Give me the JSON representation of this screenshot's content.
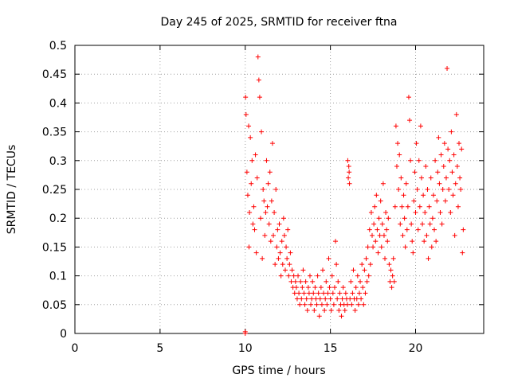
{
  "chart_data": {
    "type": "scatter",
    "title": "Day 245 of 2025, SRMTID for receiver ftna",
    "xlabel": "GPS time / hours",
    "ylabel": "SRMTID / TECUs",
    "xlim": [
      0,
      24
    ],
    "ylim": [
      0,
      0.5
    ],
    "xticks": [
      0,
      5,
      10,
      15,
      20
    ],
    "xtick_labels": [
      "0",
      "5",
      "10",
      "15",
      "20"
    ],
    "yticks": [
      0,
      0.05,
      0.1,
      0.15,
      0.2,
      0.25,
      0.3,
      0.35,
      0.4,
      0.45,
      0.5
    ],
    "ytick_labels": [
      "0",
      "0.05",
      "0.1",
      "0.15",
      "0.2",
      "0.25",
      "0.3",
      "0.35",
      "0.4",
      "0.45",
      "0.5"
    ],
    "grid": true,
    "marker": "plus",
    "color": "#ff0000",
    "series": [
      {
        "name": "SRMTID",
        "x": [
          10.0,
          10.0,
          10.02,
          10.05,
          10.1,
          10.15,
          10.2,
          10.22,
          10.25,
          10.3,
          10.35,
          10.4,
          10.45,
          10.5,
          10.55,
          10.6,
          10.65,
          10.7,
          10.75,
          10.8,
          10.85,
          10.9,
          10.95,
          11.0,
          11.05,
          11.1,
          11.15,
          11.2,
          11.25,
          11.3,
          11.35,
          11.4,
          11.45,
          11.5,
          11.55,
          11.6,
          11.65,
          11.7,
          11.75,
          11.8,
          11.85,
          11.9,
          11.95,
          12.0,
          12.05,
          12.1,
          12.15,
          12.2,
          12.25,
          12.3,
          12.35,
          12.4,
          12.45,
          12.5,
          12.55,
          12.6,
          12.65,
          12.7,
          12.75,
          12.8,
          12.85,
          12.9,
          12.95,
          13.0,
          13.05,
          13.1,
          13.15,
          13.2,
          13.25,
          13.3,
          13.35,
          13.4,
          13.45,
          13.5,
          13.55,
          13.6,
          13.65,
          13.7,
          13.75,
          13.8,
          13.85,
          13.9,
          13.95,
          14.0,
          14.05,
          14.1,
          14.15,
          14.2,
          14.25,
          14.3,
          14.35,
          14.4,
          14.45,
          14.5,
          14.55,
          14.6,
          14.65,
          14.7,
          14.75,
          14.8,
          14.85,
          14.9,
          14.95,
          15.0,
          15.05,
          15.1,
          15.15,
          15.2,
          15.25,
          15.3,
          15.35,
          15.4,
          15.45,
          15.5,
          15.55,
          15.6,
          15.65,
          15.7,
          15.75,
          15.8,
          15.85,
          15.9,
          15.95,
          16.0,
          16.02,
          16.05,
          16.08,
          16.1,
          16.12,
          16.15,
          16.2,
          16.25,
          16.3,
          16.35,
          16.4,
          16.45,
          16.5,
          16.55,
          16.6,
          16.65,
          16.7,
          16.75,
          16.8,
          16.85,
          16.9,
          16.95,
          17.0,
          17.05,
          17.1,
          17.15,
          17.2,
          17.25,
          17.3,
          17.35,
          17.4,
          17.45,
          17.5,
          17.55,
          17.6,
          17.65,
          17.7,
          17.75,
          17.8,
          17.85,
          17.9,
          17.95,
          18.0,
          18.05,
          18.1,
          18.15,
          18.2,
          18.25,
          18.3,
          18.35,
          18.4,
          18.45,
          18.5,
          18.55,
          18.6,
          18.65,
          18.7,
          18.75,
          18.8,
          18.85,
          18.9,
          18.95,
          19.0,
          19.05,
          19.1,
          19.15,
          19.2,
          19.25,
          19.3,
          19.35,
          19.4,
          19.45,
          19.5,
          19.55,
          19.6,
          19.65,
          19.7,
          19.75,
          19.8,
          19.85,
          19.9,
          19.95,
          20.0,
          20.05,
          20.1,
          20.15,
          20.2,
          20.25,
          20.3,
          20.35,
          20.4,
          20.45,
          20.5,
          20.55,
          20.6,
          20.65,
          20.7,
          20.75,
          20.8,
          20.85,
          20.9,
          20.95,
          21.0,
          21.05,
          21.1,
          21.15,
          21.2,
          21.25,
          21.3,
          21.35,
          21.4,
          21.45,
          21.5,
          21.55,
          21.6,
          21.65,
          21.7,
          21.75,
          21.8,
          21.85,
          21.9,
          21.95,
          22.0,
          22.05,
          22.1,
          22.15,
          22.2,
          22.25,
          22.3,
          22.35,
          22.4,
          22.45,
          22.5,
          22.55,
          22.6,
          22.65,
          22.7,
          22.75,
          22.8
        ],
        "y": [
          0.0,
          0.003,
          0.41,
          0.38,
          0.28,
          0.24,
          0.36,
          0.15,
          0.21,
          0.34,
          0.26,
          0.3,
          0.19,
          0.22,
          0.18,
          0.31,
          0.14,
          0.27,
          0.48,
          0.44,
          0.41,
          0.2,
          0.35,
          0.13,
          0.25,
          0.23,
          0.17,
          0.21,
          0.3,
          0.22,
          0.26,
          0.19,
          0.28,
          0.16,
          0.23,
          0.33,
          0.17,
          0.21,
          0.12,
          0.25,
          0.15,
          0.18,
          0.13,
          0.19,
          0.14,
          0.1,
          0.16,
          0.12,
          0.2,
          0.17,
          0.11,
          0.15,
          0.13,
          0.18,
          0.1,
          0.12,
          0.14,
          0.09,
          0.11,
          0.08,
          0.1,
          0.07,
          0.09,
          0.08,
          0.06,
          0.1,
          0.07,
          0.05,
          0.09,
          0.06,
          0.08,
          0.11,
          0.07,
          0.05,
          0.09,
          0.06,
          0.04,
          0.08,
          0.07,
          0.1,
          0.05,
          0.06,
          0.09,
          0.07,
          0.04,
          0.08,
          0.06,
          0.05,
          0.1,
          0.07,
          0.03,
          0.06,
          0.08,
          0.05,
          0.11,
          0.07,
          0.04,
          0.06,
          0.09,
          0.05,
          0.07,
          0.13,
          0.08,
          0.06,
          0.04,
          0.1,
          0.07,
          0.05,
          0.08,
          0.16,
          0.12,
          0.06,
          0.09,
          0.04,
          0.07,
          0.05,
          0.03,
          0.06,
          0.08,
          0.05,
          0.04,
          0.07,
          0.06,
          0.05,
          0.3,
          0.27,
          0.29,
          0.28,
          0.26,
          0.06,
          0.09,
          0.05,
          0.07,
          0.11,
          0.06,
          0.04,
          0.08,
          0.06,
          0.1,
          0.05,
          0.07,
          0.09,
          0.06,
          0.12,
          0.08,
          0.05,
          0.11,
          0.07,
          0.13,
          0.09,
          0.15,
          0.1,
          0.18,
          0.12,
          0.21,
          0.17,
          0.15,
          0.19,
          0.22,
          0.16,
          0.24,
          0.18,
          0.14,
          0.2,
          0.17,
          0.23,
          0.15,
          0.19,
          0.26,
          0.17,
          0.13,
          0.21,
          0.18,
          0.16,
          0.2,
          0.12,
          0.09,
          0.11,
          0.08,
          0.1,
          0.13,
          0.09,
          0.22,
          0.36,
          0.29,
          0.33,
          0.25,
          0.31,
          0.19,
          0.27,
          0.22,
          0.17,
          0.24,
          0.2,
          0.15,
          0.26,
          0.18,
          0.22,
          0.41,
          0.37,
          0.3,
          0.19,
          0.16,
          0.14,
          0.23,
          0.28,
          0.21,
          0.33,
          0.25,
          0.18,
          0.3,
          0.22,
          0.36,
          0.27,
          0.19,
          0.24,
          0.16,
          0.21,
          0.29,
          0.17,
          0.25,
          0.13,
          0.22,
          0.19,
          0.27,
          0.15,
          0.2,
          0.24,
          0.18,
          0.3,
          0.16,
          0.23,
          0.28,
          0.34,
          0.26,
          0.21,
          0.31,
          0.19,
          0.25,
          0.29,
          0.33,
          0.23,
          0.27,
          0.46,
          0.32,
          0.25,
          0.3,
          0.21,
          0.35,
          0.28,
          0.24,
          0.31,
          0.17,
          0.26,
          0.38,
          0.29,
          0.22,
          0.33,
          0.27,
          0.25,
          0.32,
          0.14,
          0.18
        ]
      }
    ]
  }
}
